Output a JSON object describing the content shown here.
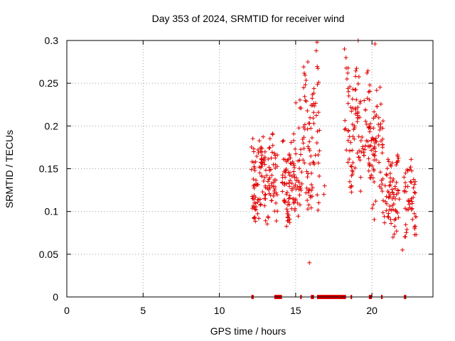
{
  "chart_data": {
    "type": "scatter",
    "title": "Day 353 of 2024, SRMTID for receiver wind",
    "xlabel": "GPS time / hours",
    "ylabel": "SRMTID / TECUs",
    "xlim": [
      0,
      24
    ],
    "ylim": [
      0,
      0.3
    ],
    "x_ticks": [
      0,
      5,
      10,
      15,
      20
    ],
    "x_tick_labels": [
      "0",
      "5",
      "10",
      "15",
      "20"
    ],
    "y_ticks": [
      0,
      0.05,
      0.1,
      0.15,
      0.2,
      0.25,
      0.3
    ],
    "y_tick_labels": [
      "0",
      "0.05",
      "0.1",
      "0.15",
      "0.2",
      "0.25",
      "0.3"
    ],
    "grid": true,
    "marker": "+",
    "color": "#e00000",
    "zero_value_intervals": [
      [
        12.1,
        12.25
      ],
      [
        13.6,
        14.1
      ],
      [
        15.3,
        15.4
      ],
      [
        16.0,
        16.2
      ],
      [
        16.4,
        18.3
      ],
      [
        18.6,
        18.7
      ],
      [
        19.8,
        20.0
      ],
      [
        20.6,
        20.7
      ],
      [
        22.1,
        22.25
      ]
    ],
    "bands": [
      {
        "x": [
          12.1,
          12.9
        ],
        "center": 0.135,
        "spread": 0.055,
        "count": 70
      },
      {
        "x": [
          12.9,
          13.8
        ],
        "center": 0.14,
        "spread": 0.05,
        "count": 70
      },
      {
        "x": [
          14.1,
          15.0
        ],
        "center": 0.135,
        "spread": 0.05,
        "count": 80
      },
      {
        "x": [
          15.0,
          16.2
        ],
        "center": 0.18,
        "spread": 0.08,
        "count": 90
      },
      {
        "x": [
          16.2,
          16.6
        ],
        "center": 0.2,
        "spread": 0.1,
        "count": 20
      },
      {
        "x": [
          18.2,
          19.2
        ],
        "center": 0.2,
        "spread": 0.07,
        "count": 70
      },
      {
        "x": [
          19.2,
          20.0
        ],
        "center": 0.19,
        "spread": 0.07,
        "count": 50
      },
      {
        "x": [
          20.0,
          20.8
        ],
        "center": 0.17,
        "spread": 0.08,
        "count": 60
      },
      {
        "x": [
          20.8,
          21.8
        ],
        "center": 0.12,
        "spread": 0.05,
        "count": 70
      },
      {
        "x": [
          22.1,
          22.9
        ],
        "center": 0.12,
        "spread": 0.045,
        "count": 50
      }
    ],
    "peak_points": [
      {
        "x": 16.4,
        "y": 0.298
      },
      {
        "x": 16.35,
        "y": 0.288
      },
      {
        "x": 15.8,
        "y": 0.275
      },
      {
        "x": 18.2,
        "y": 0.29
      },
      {
        "x": 18.3,
        "y": 0.28
      },
      {
        "x": 19.1,
        "y": 0.3
      },
      {
        "x": 20.2,
        "y": 0.296
      },
      {
        "x": 16.9,
        "y": 0.13
      },
      {
        "x": 16.85,
        "y": 0.12
      },
      {
        "x": 15.9,
        "y": 0.04
      },
      {
        "x": 22.0,
        "y": 0.055
      }
    ]
  }
}
